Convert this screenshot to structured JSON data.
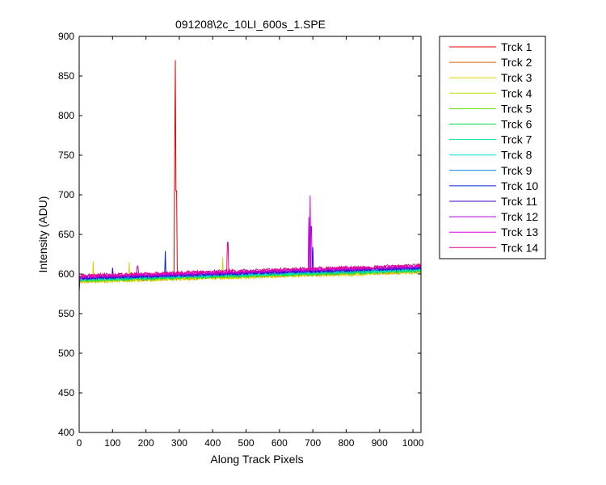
{
  "chart_data": {
    "type": "line",
    "title": "091208\\2c_10LI_600s_1.SPE",
    "xlabel": "Along Track Pixels",
    "ylabel": "Intensity (ADU)",
    "xlim": [
      0,
      1024
    ],
    "ylim": [
      400,
      900
    ],
    "xticks": [
      0,
      100,
      200,
      300,
      400,
      500,
      600,
      700,
      800,
      900,
      1000
    ],
    "yticks": [
      400,
      450,
      500,
      550,
      600,
      650,
      700,
      750,
      800,
      850,
      900
    ],
    "grid": false,
    "legend_position": "outside-right-top",
    "series": [
      {
        "name": "Trck 1",
        "color": "#e00000",
        "baseline": [
          593,
          606
        ],
        "spikes": [
          [
            287,
            740
          ],
          [
            289,
            870
          ],
          [
            291,
            705
          ]
        ]
      },
      {
        "name": "Trck 2",
        "color": "#e06000",
        "baseline": [
          591,
          603
        ],
        "spikes": []
      },
      {
        "name": "Trck 3",
        "color": "#e0d000",
        "baseline": [
          590,
          602
        ],
        "spikes": [
          [
            42,
            616
          ],
          [
            150,
            615
          ]
        ]
      },
      {
        "name": "Trck 4",
        "color": "#c0e000",
        "baseline": [
          591,
          604
        ],
        "spikes": [
          [
            430,
            621
          ]
        ]
      },
      {
        "name": "Trck 5",
        "color": "#60e000",
        "baseline": [
          592,
          605
        ],
        "spikes": []
      },
      {
        "name": "Trck 6",
        "color": "#00e040",
        "baseline": [
          592,
          604
        ],
        "spikes": []
      },
      {
        "name": "Trck 7",
        "color": "#00e0a0",
        "baseline": [
          593,
          605
        ],
        "spikes": []
      },
      {
        "name": "Trck 8",
        "color": "#00e0e0",
        "baseline": [
          594,
          606
        ],
        "spikes": []
      },
      {
        "name": "Trck 9",
        "color": "#0080e0",
        "baseline": [
          594,
          607
        ],
        "spikes": []
      },
      {
        "name": "Trck 10",
        "color": "#0020e0",
        "baseline": [
          595,
          608
        ],
        "spikes": [
          [
            258,
            629
          ],
          [
            700,
            634
          ]
        ]
      },
      {
        "name": "Trck 11",
        "color": "#4000c0",
        "baseline": [
          595,
          608
        ],
        "spikes": [
          [
            100,
            608
          ]
        ]
      },
      {
        "name": "Trck 12",
        "color": "#a000e0",
        "baseline": [
          596,
          609
        ],
        "spikes": [
          [
            688,
            672
          ],
          [
            695,
            660
          ]
        ]
      },
      {
        "name": "Trck 13",
        "color": "#e000e0",
        "baseline": [
          597,
          610
        ],
        "spikes": [
          [
            692,
            699
          ]
        ]
      },
      {
        "name": "Trck 14",
        "color": "#e00080",
        "baseline": [
          598,
          611
        ],
        "spikes": [
          [
            445,
            640
          ],
          [
            175,
            610
          ]
        ]
      }
    ]
  }
}
